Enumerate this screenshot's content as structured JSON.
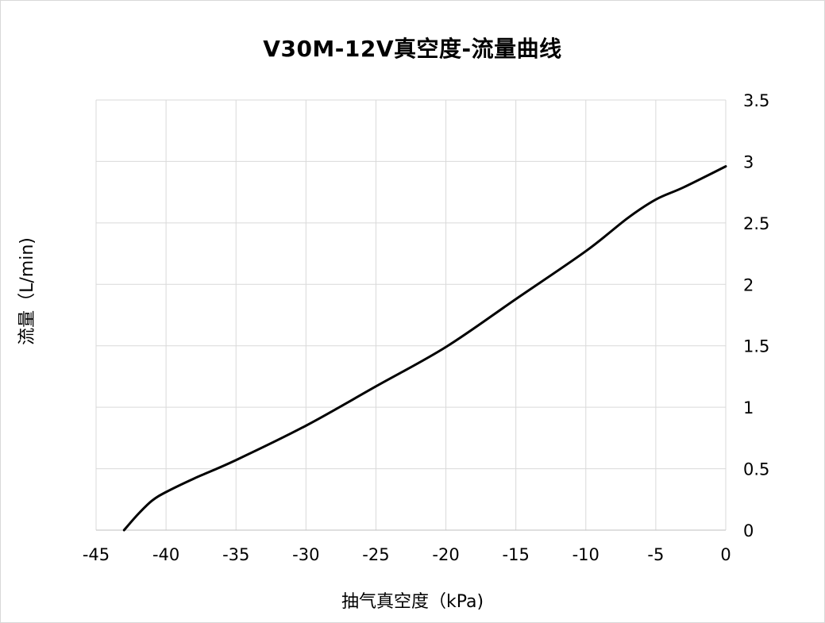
{
  "chart_data": {
    "type": "line",
    "title": "V30M-12V真空度-流量曲线",
    "xlabel": "抽气真空度（kPa)",
    "ylabel": "流量（L/min)",
    "xlim": [
      -45,
      0
    ],
    "ylim": [
      0,
      3.5
    ],
    "x_ticks": [
      "-45",
      "-40",
      "-35",
      "-30",
      "-25",
      "-20",
      "-15",
      "-10",
      "-5",
      "0"
    ],
    "y_ticks": [
      "0",
      "0.5",
      "1",
      "1.5",
      "2",
      "2.5",
      "3",
      "3.5"
    ],
    "y_axis_side": "right",
    "grid": true,
    "legend": false,
    "series": [
      {
        "x": [
          -43,
          -42,
          -41,
          -40,
          -38,
          -35,
          -30,
          -25,
          -20,
          -15,
          -10,
          -7,
          -5,
          -3,
          0
        ],
        "y": [
          0,
          0.13,
          0.24,
          0.31,
          0.42,
          0.57,
          0.85,
          1.17,
          1.49,
          1.88,
          2.27,
          2.54,
          2.69,
          2.79,
          2.96
        ],
        "color": "#000000"
      }
    ]
  }
}
